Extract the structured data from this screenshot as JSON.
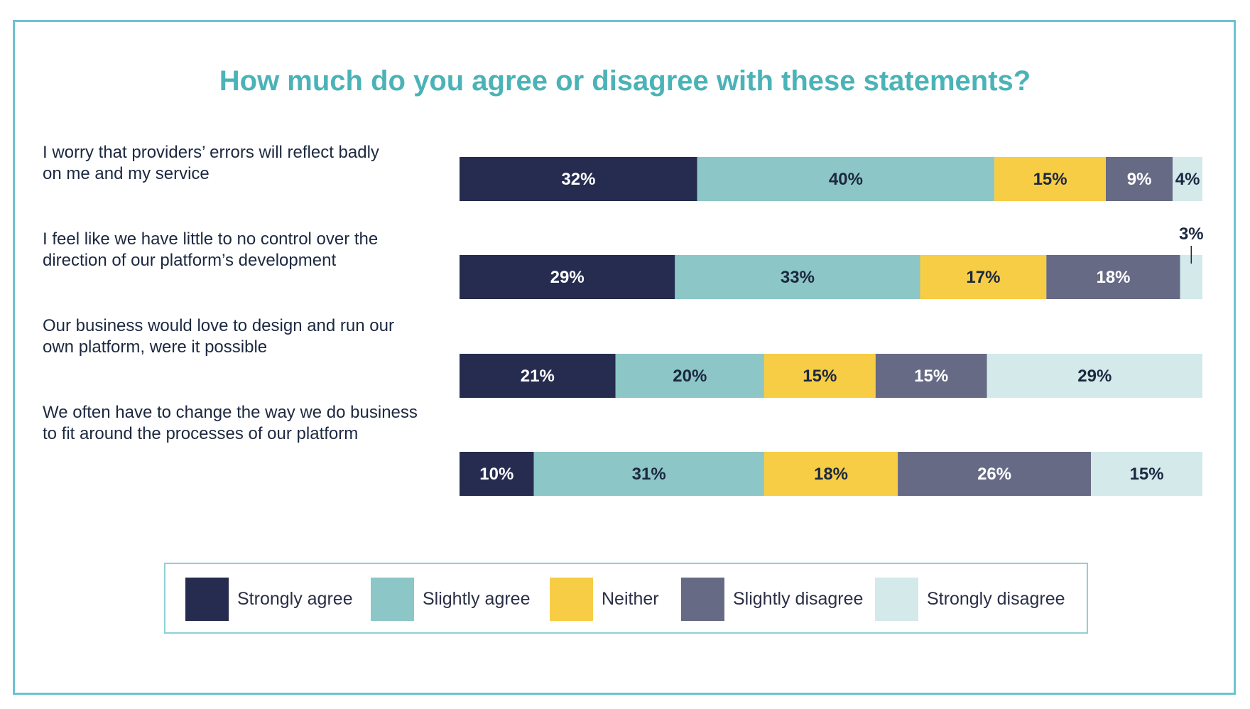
{
  "chart_data": {
    "type": "bar",
    "orientation": "horizontal",
    "stacked": true,
    "title": "How much do you agree or disagree with these statements?",
    "categories": [
      [
        "I worry that providers’ errors will reflect badly",
        "on me and my service"
      ],
      [
        "I feel like we have little to no control over the",
        "direction of our platform’s development"
      ],
      [
        "Our business would love to design and run our",
        "own platform, were it possible"
      ],
      [
        "We often have to change the way we do business",
        "to fit around the processes of our platform"
      ]
    ],
    "series": [
      {
        "name": "Strongly agree",
        "color": "#252c4f",
        "label_color": "#ffffff",
        "values": [
          32,
          29,
          21,
          10
        ],
        "labels": [
          "32%",
          "29%",
          "21%",
          "10%"
        ]
      },
      {
        "name": "Slightly agree",
        "color": "#8cc6c6",
        "label_color": "#1c2840",
        "values": [
          40,
          33,
          20,
          31
        ],
        "labels": [
          "40%",
          "33%",
          "20%",
          "31%"
        ]
      },
      {
        "name": "Neither",
        "color": "#f6cd45",
        "label_color": "#1c2840",
        "values": [
          15,
          17,
          15,
          18
        ],
        "labels": [
          "15%",
          "17%",
          "15%",
          "18%"
        ]
      },
      {
        "name": "Slightly disagree",
        "color": "#666a85",
        "label_color": "#ffffff",
        "values": [
          9,
          18,
          15,
          26
        ],
        "labels": [
          "9%",
          "18%",
          "15%",
          "26%"
        ]
      },
      {
        "name": "Strongly disagree",
        "color": "#d3e9ea",
        "label_color": "#1c2840",
        "values": [
          4,
          3,
          29,
          15
        ],
        "labels": [
          "4%",
          "3%",
          "29%",
          "15%"
        ]
      }
    ],
    "xlim": [
      0,
      100
    ],
    "grid": false,
    "legend": "bottom"
  },
  "legend": {
    "items": [
      "Strongly agree",
      "Slightly agree",
      "Neither",
      "Slightly disagree",
      "Strongly disagree"
    ]
  }
}
